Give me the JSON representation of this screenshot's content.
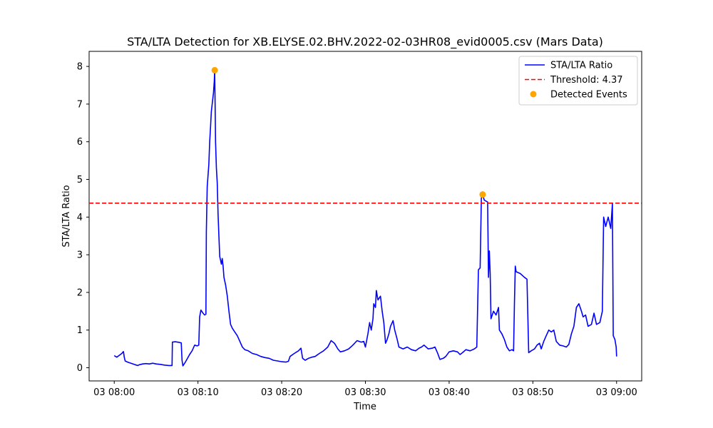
{
  "chart_data": {
    "type": "line",
    "title": "STA/LTA Detection for XB.ELYSE.02.BHV.2022-02-03HR08_evid0005.csv (Mars Data)",
    "xlabel": "Time",
    "ylabel": "STA/LTA Ratio",
    "x_ticks": [
      {
        "minutes": 0,
        "label": "03 08:00"
      },
      {
        "minutes": 10,
        "label": "03 08:10"
      },
      {
        "minutes": 20,
        "label": "03 08:20"
      },
      {
        "minutes": 30,
        "label": "03 08:30"
      },
      {
        "minutes": 40,
        "label": "03 08:40"
      },
      {
        "minutes": 50,
        "label": "03 08:50"
      },
      {
        "minutes": 60,
        "label": "03 09:00"
      }
    ],
    "y_ticks": [
      "0",
      "1",
      "2",
      "3",
      "4",
      "5",
      "6",
      "7",
      "8"
    ],
    "ylim": [
      -0.35,
      8.4
    ],
    "xlim_minutes": [
      -3,
      63
    ],
    "legend_position": "upper right",
    "series": [
      {
        "name": "STA/LTA Ratio",
        "color": "#0000ff",
        "points": [
          [
            0,
            0.32
          ],
          [
            0.3,
            0.28
          ],
          [
            0.6,
            0.33
          ],
          [
            0.9,
            0.38
          ],
          [
            1.1,
            0.43
          ],
          [
            1.2,
            0.28
          ],
          [
            1.3,
            0.18
          ],
          [
            1.6,
            0.15
          ],
          [
            2.0,
            0.12
          ],
          [
            2.5,
            0.08
          ],
          [
            2.8,
            0.06
          ],
          [
            3.0,
            0.08
          ],
          [
            3.4,
            0.1
          ],
          [
            3.8,
            0.11
          ],
          [
            4.2,
            0.1
          ],
          [
            4.6,
            0.12
          ],
          [
            5.0,
            0.1
          ],
          [
            5.5,
            0.09
          ],
          [
            6.0,
            0.07
          ],
          [
            6.5,
            0.06
          ],
          [
            6.8,
            0.06
          ],
          [
            6.9,
            0.06
          ],
          [
            6.95,
            0.68
          ],
          [
            7.3,
            0.69
          ],
          [
            7.8,
            0.67
          ],
          [
            8.0,
            0.66
          ],
          [
            8.1,
            0.2
          ],
          [
            8.2,
            0.05
          ],
          [
            8.5,
            0.15
          ],
          [
            9.0,
            0.35
          ],
          [
            9.3,
            0.45
          ],
          [
            9.6,
            0.6
          ],
          [
            9.9,
            0.58
          ],
          [
            10.1,
            0.6
          ],
          [
            10.2,
            1.35
          ],
          [
            10.35,
            1.53
          ],
          [
            10.6,
            1.45
          ],
          [
            10.8,
            1.4
          ],
          [
            10.95,
            1.42
          ],
          [
            11.0,
            3.6
          ],
          [
            11.1,
            4.8
          ],
          [
            11.3,
            5.4
          ],
          [
            11.4,
            6.0
          ],
          [
            11.5,
            6.4
          ],
          [
            11.6,
            6.8
          ],
          [
            11.75,
            7.1
          ],
          [
            11.85,
            7.3
          ],
          [
            11.95,
            7.6
          ],
          [
            12.0,
            7.9
          ],
          [
            12.05,
            7.0
          ],
          [
            12.1,
            6.0
          ],
          [
            12.2,
            5.3
          ],
          [
            12.3,
            4.9
          ],
          [
            12.4,
            4.1
          ],
          [
            12.5,
            3.5
          ],
          [
            12.6,
            2.95
          ],
          [
            12.7,
            2.85
          ],
          [
            12.8,
            2.75
          ],
          [
            12.9,
            2.9
          ],
          [
            13.0,
            2.7
          ],
          [
            13.1,
            2.4
          ],
          [
            13.3,
            2.2
          ],
          [
            13.5,
            1.9
          ],
          [
            13.7,
            1.5
          ],
          [
            13.9,
            1.15
          ],
          [
            14.1,
            1.05
          ],
          [
            14.4,
            0.95
          ],
          [
            14.7,
            0.85
          ],
          [
            15.0,
            0.7
          ],
          [
            15.3,
            0.55
          ],
          [
            15.6,
            0.48
          ],
          [
            16.0,
            0.45
          ],
          [
            16.5,
            0.38
          ],
          [
            17.0,
            0.35
          ],
          [
            17.5,
            0.3
          ],
          [
            18.0,
            0.27
          ],
          [
            18.5,
            0.25
          ],
          [
            19.0,
            0.2
          ],
          [
            19.5,
            0.18
          ],
          [
            20.0,
            0.16
          ],
          [
            20.5,
            0.15
          ],
          [
            20.8,
            0.17
          ],
          [
            21.0,
            0.3
          ],
          [
            21.5,
            0.38
          ],
          [
            22.0,
            0.45
          ],
          [
            22.3,
            0.52
          ],
          [
            22.5,
            0.25
          ],
          [
            22.8,
            0.2
          ],
          [
            23.2,
            0.25
          ],
          [
            23.6,
            0.28
          ],
          [
            24.0,
            0.3
          ],
          [
            24.5,
            0.38
          ],
          [
            25.0,
            0.45
          ],
          [
            25.5,
            0.55
          ],
          [
            25.9,
            0.72
          ],
          [
            26.3,
            0.65
          ],
          [
            26.7,
            0.5
          ],
          [
            27.0,
            0.42
          ],
          [
            27.5,
            0.45
          ],
          [
            28.0,
            0.5
          ],
          [
            28.5,
            0.6
          ],
          [
            29.0,
            0.72
          ],
          [
            29.5,
            0.68
          ],
          [
            29.8,
            0.7
          ],
          [
            30.0,
            0.55
          ],
          [
            30.3,
            0.9
          ],
          [
            30.5,
            1.2
          ],
          [
            30.7,
            1.0
          ],
          [
            30.9,
            1.3
          ],
          [
            31.0,
            1.7
          ],
          [
            31.2,
            1.6
          ],
          [
            31.3,
            2.05
          ],
          [
            31.5,
            1.8
          ],
          [
            31.8,
            1.9
          ],
          [
            32.0,
            1.5
          ],
          [
            32.2,
            1.2
          ],
          [
            32.4,
            0.65
          ],
          [
            32.6,
            0.75
          ],
          [
            32.8,
            0.9
          ],
          [
            33.0,
            1.1
          ],
          [
            33.3,
            1.25
          ],
          [
            33.5,
            1.0
          ],
          [
            33.8,
            0.75
          ],
          [
            34.0,
            0.55
          ],
          [
            34.5,
            0.5
          ],
          [
            35.0,
            0.55
          ],
          [
            35.5,
            0.48
          ],
          [
            36.0,
            0.45
          ],
          [
            36.4,
            0.52
          ],
          [
            36.7,
            0.55
          ],
          [
            37.0,
            0.6
          ],
          [
            37.5,
            0.5
          ],
          [
            38.0,
            0.52
          ],
          [
            38.3,
            0.55
          ],
          [
            38.6,
            0.4
          ],
          [
            38.9,
            0.22
          ],
          [
            39.3,
            0.25
          ],
          [
            39.6,
            0.3
          ],
          [
            40.0,
            0.42
          ],
          [
            40.5,
            0.45
          ],
          [
            41.0,
            0.42
          ],
          [
            41.3,
            0.35
          ],
          [
            41.6,
            0.4
          ],
          [
            42.0,
            0.48
          ],
          [
            42.5,
            0.45
          ],
          [
            43.0,
            0.5
          ],
          [
            43.3,
            0.55
          ],
          [
            43.5,
            2.6
          ],
          [
            43.7,
            2.65
          ],
          [
            43.85,
            4.5
          ],
          [
            44.0,
            4.6
          ],
          [
            44.2,
            4.45
          ],
          [
            44.6,
            4.4
          ],
          [
            44.7,
            2.4
          ],
          [
            44.8,
            3.1
          ],
          [
            44.9,
            2.5
          ],
          [
            45.0,
            1.3
          ],
          [
            45.3,
            1.5
          ],
          [
            45.6,
            1.4
          ],
          [
            45.9,
            1.6
          ],
          [
            46.0,
            1.0
          ],
          [
            46.3,
            0.9
          ],
          [
            46.6,
            0.75
          ],
          [
            46.9,
            0.55
          ],
          [
            47.2,
            0.45
          ],
          [
            47.5,
            0.48
          ],
          [
            47.7,
            0.45
          ],
          [
            47.8,
            1.7
          ],
          [
            47.9,
            2.7
          ],
          [
            48.0,
            2.55
          ],
          [
            48.5,
            2.5
          ],
          [
            49.0,
            2.4
          ],
          [
            49.3,
            2.35
          ],
          [
            49.5,
            0.4
          ],
          [
            49.8,
            0.45
          ],
          [
            50.2,
            0.5
          ],
          [
            50.5,
            0.6
          ],
          [
            50.8,
            0.65
          ],
          [
            51.0,
            0.5
          ],
          [
            51.3,
            0.7
          ],
          [
            51.6,
            0.85
          ],
          [
            51.9,
            1.0
          ],
          [
            52.2,
            0.95
          ],
          [
            52.5,
            1.0
          ],
          [
            52.8,
            0.7
          ],
          [
            53.2,
            0.6
          ],
          [
            53.6,
            0.58
          ],
          [
            54.0,
            0.55
          ],
          [
            54.3,
            0.62
          ],
          [
            54.6,
            0.9
          ],
          [
            54.9,
            1.1
          ],
          [
            55.2,
            1.6
          ],
          [
            55.5,
            1.7
          ],
          [
            55.8,
            1.5
          ],
          [
            56.0,
            1.35
          ],
          [
            56.3,
            1.4
          ],
          [
            56.6,
            1.1
          ],
          [
            57.0,
            1.15
          ],
          [
            57.3,
            1.45
          ],
          [
            57.6,
            1.15
          ],
          [
            58.0,
            1.2
          ],
          [
            58.3,
            1.5
          ],
          [
            58.45,
            4.0
          ],
          [
            58.7,
            3.75
          ],
          [
            59.0,
            4.0
          ],
          [
            59.3,
            3.7
          ],
          [
            59.5,
            4.35
          ],
          [
            59.6,
            0.85
          ],
          [
            59.8,
            0.75
          ],
          [
            59.95,
            0.55
          ],
          [
            60.0,
            0.3
          ]
        ]
      },
      {
        "name": "Threshold: 4.37",
        "color": "#ff0000",
        "style": "dashed",
        "value": 4.37
      },
      {
        "name": "Detected Events",
        "color": "#ffa500",
        "style": "scatter",
        "points": [
          [
            12.0,
            7.9
          ],
          [
            44.0,
            4.6
          ]
        ]
      }
    ]
  }
}
